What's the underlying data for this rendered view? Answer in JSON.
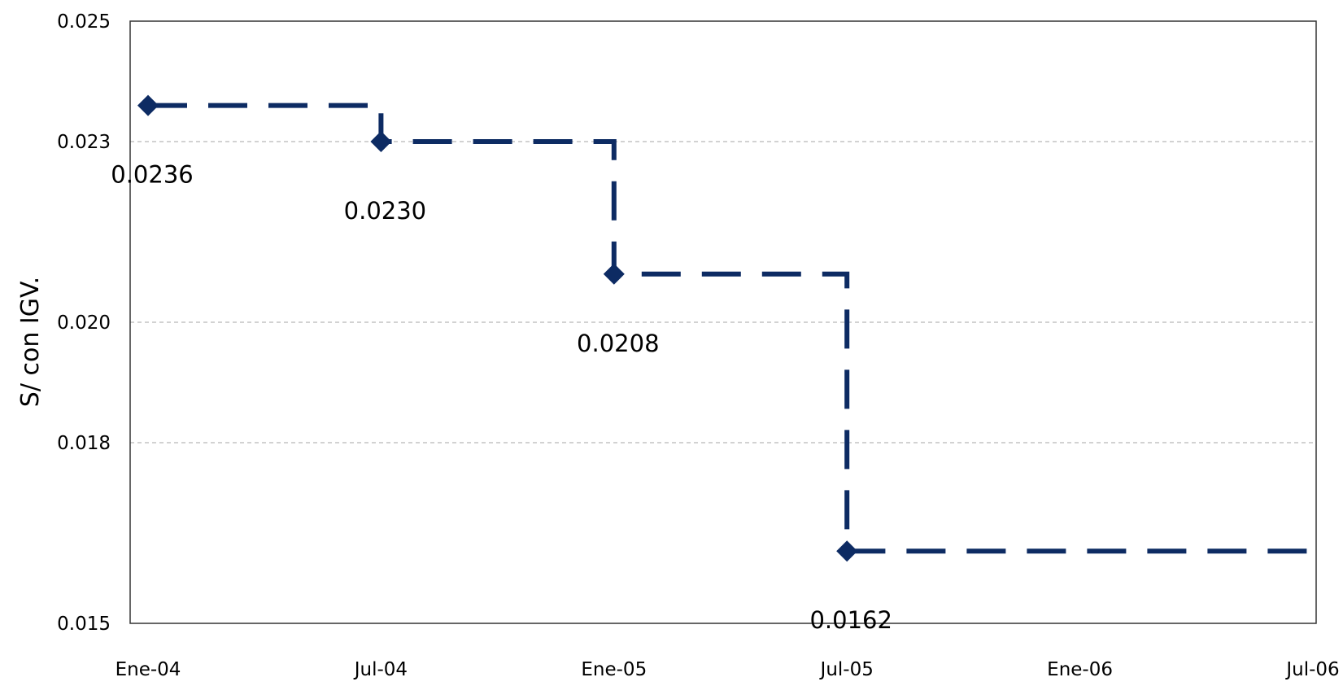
{
  "chart_data": {
    "type": "line",
    "title": "",
    "xlabel": "",
    "ylabel": "S/ con IGV.",
    "x_ticks": [
      "Ene-04",
      "Jul-04",
      "Ene-05",
      "Jul-05",
      "Ene-06",
      "Jul-06"
    ],
    "y_ticks": [
      "0.025",
      "0.023",
      "0.020",
      "0.018",
      "0.015"
    ],
    "ylim": [
      0.015,
      0.025
    ],
    "grid": "horizontal dashed",
    "step": true,
    "series": [
      {
        "color": "#0d2b63",
        "points": [
          {
            "x": "Ene-04",
            "y": 0.0236,
            "label": "0.0236"
          },
          {
            "x": "Jul-04",
            "y": 0.023,
            "label": "0.0230"
          },
          {
            "x": "Ene-05",
            "y": 0.0208,
            "label": "0.0208"
          },
          {
            "x": "Jul-05",
            "y": 0.0162,
            "label": "0.0162"
          }
        ],
        "end_x": "Jul-06"
      }
    ]
  }
}
